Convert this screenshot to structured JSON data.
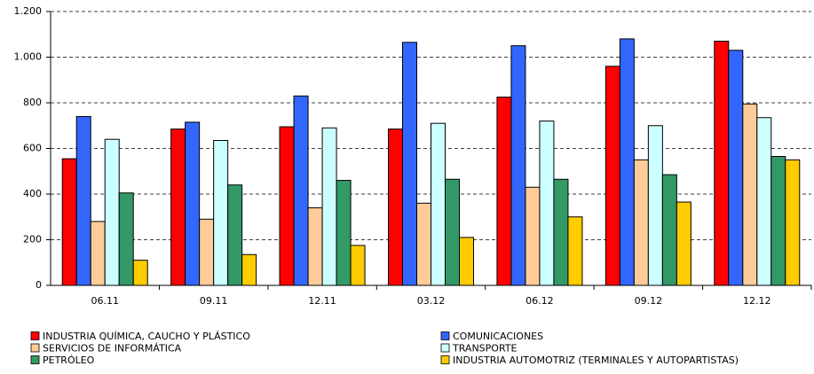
{
  "chart_data": {
    "type": "bar",
    "categories": [
      "06.11",
      "09.11",
      "12.11",
      "03.12",
      "06.12",
      "09.12",
      "12.12"
    ],
    "series": [
      {
        "name": "INDUSTRIA QUÍMICA, CAUCHO Y PLÁSTICO",
        "color": "#ff0000",
        "values": [
          555,
          685,
          695,
          685,
          825,
          960,
          1070
        ]
      },
      {
        "name": "COMUNICACIONES",
        "color": "#3366ff",
        "values": [
          740,
          715,
          830,
          1065,
          1050,
          1080,
          1030
        ]
      },
      {
        "name": "SERVICIOS DE INFORMÁTICA",
        "color": "#ffcc99",
        "values": [
          280,
          290,
          340,
          360,
          430,
          550,
          795
        ]
      },
      {
        "name": "TRANSPORTE",
        "color": "#ccffff",
        "values": [
          640,
          635,
          690,
          710,
          720,
          700,
          735
        ]
      },
      {
        "name": "PETRÓLEO",
        "color": "#339966",
        "values": [
          405,
          440,
          460,
          465,
          465,
          485,
          565
        ]
      },
      {
        "name": "INDUSTRIA AUTOMOTRIZ (TERMINALES Y AUTOPARTISTAS)",
        "color": "#ffcc00",
        "values": [
          110,
          135,
          175,
          210,
          300,
          365,
          550
        ]
      }
    ],
    "ylim": [
      0,
      1200
    ],
    "yticks": [
      0,
      200,
      400,
      600,
      800,
      {
        "value": 1000,
        "label": "1.000"
      },
      {
        "value": 1200,
        "label": "1.200"
      }
    ],
    "grid": true
  }
}
